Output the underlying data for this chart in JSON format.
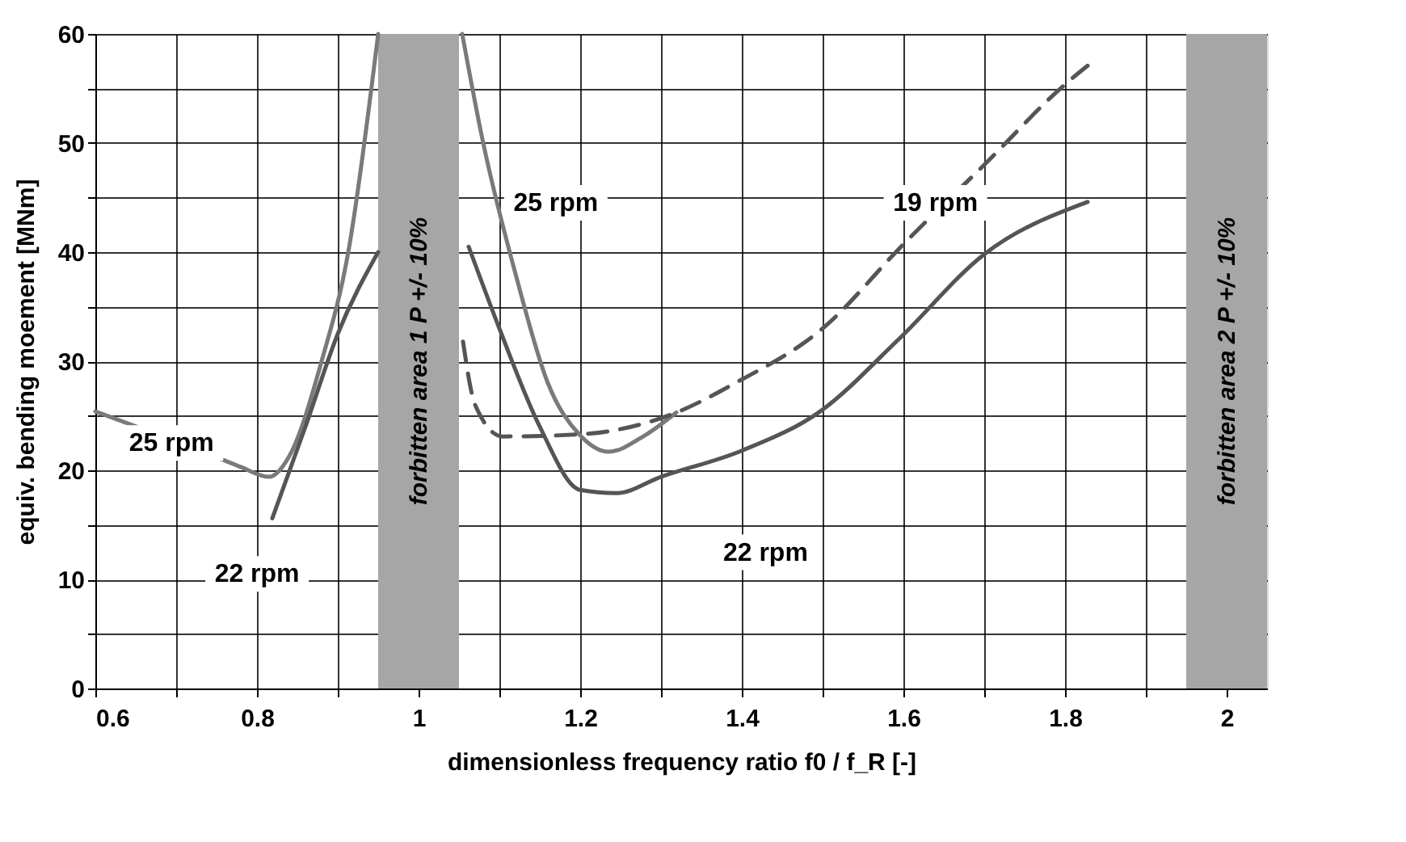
{
  "chart_data": {
    "type": "line",
    "xlabel": "dimensionless frequency ratio    f0 /  f_R  [-]",
    "ylabel": "equiv. bending moement [MNm]",
    "xlim": [
      0.6,
      2.05
    ],
    "xticks": [
      0.6,
      {
        "value": 0.7,
        "label": null
      },
      0.8,
      {
        "value": 0.9,
        "label": null
      },
      1,
      {
        "value": 1.1,
        "label": null
      },
      1.2,
      {
        "value": 1.3,
        "label": null
      },
      1.4,
      {
        "value": 1.5,
        "label": null
      },
      1.6,
      {
        "value": 1.7,
        "label": null
      },
      1.8,
      {
        "value": 1.9,
        "label": null
      },
      2
    ],
    "ylim": [
      0,
      60
    ],
    "yticks": [
      0,
      {
        "value": 5,
        "label": null
      },
      10,
      {
        "value": 15,
        "label": null
      },
      20,
      {
        "value": 25,
        "label": null
      },
      30,
      {
        "value": 35,
        "label": null
      },
      40,
      {
        "value": 45,
        "label": null
      },
      50,
      {
        "value": 55,
        "label": null
      },
      60
    ],
    "grid": true,
    "series": [
      {
        "color": "#7a7a7a",
        "line_style": "solid",
        "x": [
          0.6,
          0.76,
          0.78,
          0.815,
          0.84,
          0.88,
          0.913,
          0.95
        ],
        "values": [
          25.4,
          20.9,
          20.3,
          19.4,
          21.3,
          30,
          40,
          60
        ]
      },
      {
        "color": "#555555",
        "line_style": "solid",
        "x": [
          0.819,
          0.86,
          0.9,
          0.95
        ],
        "values": [
          15.6,
          24,
          32.5,
          40
        ]
      },
      {
        "color": "#7a7a7a",
        "line_style": "solid",
        "x": [
          1.054,
          1.08,
          1.12,
          1.16,
          1.2,
          1.235,
          1.28,
          1.319
        ],
        "values": [
          60,
          50,
          38,
          28,
          23.2,
          21.7,
          23.2,
          25.3
        ]
      },
      {
        "color": "#555555",
        "line_style": "solid",
        "x": [
          1.062,
          1.1,
          1.15,
          1.2,
          1.245,
          1.3,
          1.4,
          1.497,
          1.594,
          1.7,
          1.828
        ],
        "values": [
          40.5,
          33,
          24,
          18.2,
          17.9,
          19.4,
          21.8,
          25.4,
          32,
          39.8,
          44.6
        ]
      },
      {
        "color": "#555555",
        "line_style": "dashed",
        "x": [
          1.055,
          1.07,
          1.104,
          1.2,
          1.319,
          1.392,
          1.5,
          1.601,
          1.7,
          1.802,
          1.835
        ],
        "values": [
          31.8,
          26,
          23.1,
          23.3,
          25.3,
          28,
          33,
          40.8,
          48,
          55.5,
          57.5
        ]
      }
    ],
    "bands": [
      {
        "axis": "x",
        "from": 0.95,
        "to": 1.05,
        "label": "forbitten area  1 P +/- 10%",
        "color": "#a6a6a6"
      },
      {
        "axis": "x",
        "from": 1.95,
        "to": 2.05,
        "label": "forbitten area  2 P +/- 10%",
        "color": "#a6a6a6"
      }
    ],
    "annotations": [
      "25 rpm",
      "22 rpm",
      "25 rpm",
      "19 rpm",
      "22 rpm"
    ]
  }
}
